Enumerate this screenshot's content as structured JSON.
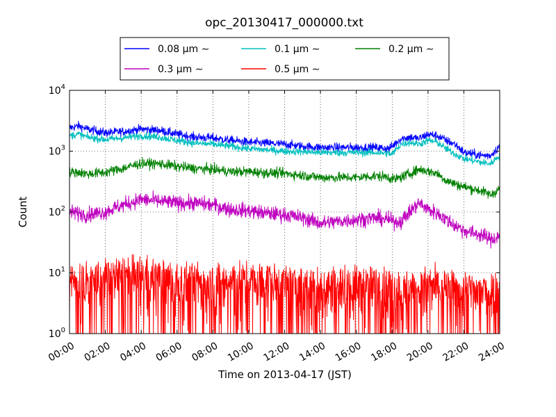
{
  "chart_data": {
    "type": "line",
    "title": "opc_20130417_000000.txt",
    "xlabel": "Time on 2013-04-17 (JST)",
    "ylabel": "Count",
    "yscale": "log",
    "ylim": [
      1,
      10000
    ],
    "xlim": [
      "00:00",
      "24:00"
    ],
    "grid": true,
    "legend_position": "top (above plot)",
    "x_ticks": [
      "00:00",
      "02:00",
      "04:00",
      "06:00",
      "08:00",
      "10:00",
      "12:00",
      "14:00",
      "16:00",
      "18:00",
      "20:00",
      "22:00",
      "24:00"
    ],
    "y_ticks": [
      {
        "value": 1,
        "base": "10",
        "exp": "0"
      },
      {
        "value": 10,
        "base": "10",
        "exp": "1"
      },
      {
        "value": 100,
        "base": "10",
        "exp": "2"
      },
      {
        "value": 1000,
        "base": "10",
        "exp": "3"
      },
      {
        "value": 10000,
        "base": "10",
        "exp": "4"
      }
    ],
    "x_hours": [
      0,
      0.5,
      1,
      2,
      3,
      4,
      5,
      6,
      7,
      8,
      9,
      10,
      11,
      12,
      13,
      14,
      15,
      16,
      17,
      17.8,
      18,
      18.5,
      19,
      19.5,
      20,
      20.5,
      21,
      21.5,
      22,
      22.5,
      23,
      23.5,
      24
    ],
    "series": [
      {
        "name": "0.08 μm ∼",
        "color": "#0000ff",
        "noise": 0.035,
        "values": [
          2400,
          2600,
          2300,
          2000,
          2100,
          2300,
          2200,
          1900,
          1700,
          1650,
          1500,
          1400,
          1350,
          1300,
          1200,
          1150,
          1150,
          1150,
          1150,
          1100,
          1200,
          1600,
          1700,
          1600,
          1900,
          1800,
          1500,
          1300,
          950,
          900,
          850,
          850,
          1200
        ]
      },
      {
        "name": "0.1 μm ∼",
        "color": "#00bfbf",
        "noise": 0.03,
        "values": [
          1800,
          1900,
          1700,
          1550,
          1650,
          1800,
          1700,
          1500,
          1350,
          1300,
          1200,
          1100,
          1050,
          1000,
          980,
          950,
          950,
          950,
          950,
          920,
          880,
          1300,
          1400,
          1300,
          1500,
          1400,
          1100,
          900,
          750,
          700,
          650,
          620,
          850
        ]
      },
      {
        "name": "0.2 μm ∼",
        "color": "#008000",
        "noise": 0.04,
        "values": [
          450,
          450,
          420,
          450,
          520,
          630,
          620,
          560,
          520,
          500,
          460,
          460,
          440,
          430,
          400,
          370,
          370,
          370,
          390,
          380,
          340,
          370,
          430,
          500,
          470,
          430,
          330,
          290,
          260,
          240,
          220,
          190,
          240
        ]
      },
      {
        "name": "0.3 μm ∼",
        "color": "#bf00bf",
        "noise": 0.06,
        "values": [
          100,
          95,
          90,
          100,
          130,
          160,
          150,
          140,
          140,
          130,
          110,
          105,
          95,
          90,
          80,
          65,
          70,
          75,
          80,
          75,
          70,
          70,
          100,
          140,
          110,
          95,
          75,
          60,
          50,
          45,
          42,
          35,
          40
        ]
      },
      {
        "name": "0.5 μm ∼",
        "color": "#ff0000",
        "noise": 0.18,
        "values": [
          7,
          7,
          7,
          8,
          9,
          9,
          8,
          7,
          7,
          7,
          7,
          7,
          7,
          6,
          6,
          6,
          6,
          6,
          6,
          6,
          5,
          5,
          5,
          5,
          6,
          6,
          5,
          5,
          5,
          5,
          5,
          5,
          5
        ]
      }
    ]
  }
}
